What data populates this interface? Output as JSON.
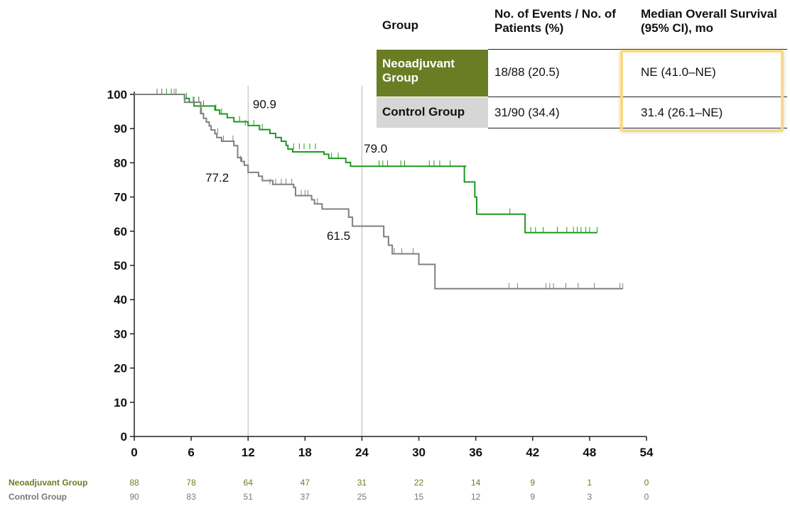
{
  "chart_data": {
    "type": "line",
    "xlim": [
      0,
      54
    ],
    "ylim": [
      0,
      100
    ],
    "x_ticks": [
      "0",
      "6",
      "12",
      "18",
      "24",
      "30",
      "36",
      "42",
      "48",
      "54"
    ],
    "y_ticks": [
      "0",
      "10",
      "20",
      "30",
      "40",
      "50",
      "60",
      "70",
      "80",
      "90",
      "100"
    ],
    "grid": false,
    "reference_lines_x": [
      12,
      24
    ],
    "annotations": [
      {
        "text": "90.9",
        "x": 12.5,
        "y": 96
      },
      {
        "text": "77.2",
        "x": 7.5,
        "y": 74.5
      },
      {
        "text": "79.0",
        "x": 24.2,
        "y": 83
      },
      {
        "text": "61.5",
        "x": 20.3,
        "y": 57.5
      }
    ],
    "series": [
      {
        "name": "Neoadjuvant Group",
        "color": "#1e9a1e",
        "steps": [
          [
            0,
            100
          ],
          [
            5,
            100
          ],
          [
            5.3,
            98.8
          ],
          [
            5.8,
            97.7
          ],
          [
            6,
            97.7
          ],
          [
            6.3,
            96.6
          ],
          [
            8,
            96.6
          ],
          [
            8.5,
            95.4
          ],
          [
            9,
            94.3
          ],
          [
            9.8,
            93.2
          ],
          [
            10.5,
            92
          ],
          [
            12,
            90.9
          ],
          [
            13.2,
            89.7
          ],
          [
            14.3,
            88.6
          ],
          [
            14.9,
            87.4
          ],
          [
            15.5,
            86.3
          ],
          [
            16,
            85.1
          ],
          [
            16.2,
            84
          ],
          [
            16.7,
            83.2
          ],
          [
            20,
            82.5
          ],
          [
            20.5,
            81.3
          ],
          [
            22.3,
            80.1
          ],
          [
            22.8,
            79
          ],
          [
            35,
            79
          ],
          [
            34.8,
            74.4
          ],
          [
            35.8,
            74.4
          ],
          [
            35.9,
            70
          ],
          [
            36.1,
            65
          ],
          [
            41,
            65
          ],
          [
            41.2,
            59.6
          ],
          [
            48.8,
            59.6
          ]
        ],
        "censor_x": [
          2.4,
          2.9,
          3.4,
          3.9,
          4.4,
          5.5,
          6.3,
          6.8,
          7.3,
          8.6,
          9.2,
          11.1,
          11.7,
          12.6,
          13.5,
          16.8,
          17.4,
          17.9,
          18.5,
          19.1,
          20.8,
          21.5,
          25.8,
          26.2,
          26.7,
          28.1,
          28.5,
          31.1,
          31.6,
          32.2,
          33.3,
          39.6,
          41.8,
          42.3,
          43.1,
          44.6,
          45.6,
          46.3,
          46.7,
          47.1,
          47.6,
          48,
          48.8
        ],
        "censor_y": [
          100,
          100,
          100,
          100,
          100,
          98.8,
          97.7,
          97.7,
          96.6,
          95.4,
          94.3,
          92,
          90.9,
          90.9,
          89.7,
          84,
          84,
          84,
          84,
          84,
          81.3,
          81.3,
          79,
          79,
          79,
          79,
          79,
          79,
          79,
          79,
          79,
          65,
          59.6,
          59.6,
          59.6,
          59.6,
          59.6,
          59.6,
          59.6,
          59.6,
          59.6,
          59.6,
          59.6
        ]
      },
      {
        "name": "Control Group",
        "color": "#808080",
        "steps": [
          [
            0,
            100
          ],
          [
            5,
            100
          ],
          [
            5.3,
            97.7
          ],
          [
            6.5,
            97.7
          ],
          [
            7,
            94.4
          ],
          [
            7.3,
            93
          ],
          [
            7.6,
            91.9
          ],
          [
            7.9,
            90.8
          ],
          [
            8.1,
            89.6
          ],
          [
            8.5,
            88.5
          ],
          [
            8.7,
            87.4
          ],
          [
            9.2,
            86.3
          ],
          [
            10.2,
            86.3
          ],
          [
            10.5,
            85
          ],
          [
            10.9,
            81.5
          ],
          [
            11.3,
            80.4
          ],
          [
            11.6,
            79.3
          ],
          [
            12,
            77.2
          ],
          [
            13.1,
            76.1
          ],
          [
            13.5,
            74.8
          ],
          [
            14.6,
            73.7
          ],
          [
            15.5,
            73.7
          ],
          [
            16.8,
            72.8
          ],
          [
            17,
            70.4
          ],
          [
            18.6,
            70.4
          ],
          [
            18.7,
            69.2
          ],
          [
            19,
            68
          ],
          [
            19.5,
            68
          ],
          [
            19.8,
            66.5
          ],
          [
            22.1,
            66.5
          ],
          [
            22.6,
            64.1
          ],
          [
            23,
            61.5
          ],
          [
            26,
            61.5
          ],
          [
            26.3,
            58.4
          ],
          [
            26.8,
            55.9
          ],
          [
            27.2,
            53.4
          ],
          [
            29.8,
            53.4
          ],
          [
            30,
            50.3
          ],
          [
            31.5,
            50.3
          ],
          [
            31.7,
            43.2
          ],
          [
            51.5,
            43.2
          ]
        ],
        "censor_x": [
          4.2,
          6.2,
          6.8,
          7.1,
          8.8,
          9.4,
          10.4,
          11.2,
          14.3,
          14.9,
          15.5,
          16,
          16.6,
          17.6,
          18,
          18.3,
          19.3,
          27.4,
          28.2,
          29.4,
          39.5,
          40.4,
          43.4,
          43.8,
          44.2,
          45.5,
          46.8,
          48.5,
          51.2,
          51.5
        ],
        "censor_y": [
          100,
          97.7,
          97.7,
          94.4,
          88.5,
          86.3,
          86.3,
          80.4,
          73.7,
          73.7,
          73.7,
          73.7,
          73.7,
          70.4,
          70.4,
          70.4,
          68,
          53.4,
          53.4,
          53.4,
          43.2,
          43.2,
          43.2,
          43.2,
          43.2,
          43.2,
          43.2,
          43.2,
          43.2,
          43.2
        ]
      }
    ],
    "at_risk": {
      "times": [
        0,
        6,
        12,
        18,
        24,
        30,
        36,
        42,
        48,
        54
      ],
      "rows": [
        {
          "name": "Neoadjuvant Group",
          "color": "#6a7d24",
          "values": [
            "88",
            "78",
            "64",
            "47",
            "31",
            "22",
            "14",
            "9",
            "1",
            "0"
          ]
        },
        {
          "name": "Control Group",
          "color": "#777777",
          "values": [
            "90",
            "83",
            "51",
            "37",
            "25",
            "15",
            "12",
            "9",
            "3",
            "0"
          ]
        }
      ]
    }
  },
  "table": {
    "headers": [
      "Group",
      "No. of Events / No. of Patients (%)",
      "Median Overall Survival (95% CI), mo"
    ],
    "rows": [
      {
        "group": "Neoadjuvant Group",
        "events": "18/88 (20.5)",
        "median": "NE (41.0–NE)"
      },
      {
        "group": "Control Group",
        "events": "31/90 (34.4)",
        "median": "31.4 (26.1–NE)"
      }
    ],
    "highlight_color": "#f7d98a"
  }
}
